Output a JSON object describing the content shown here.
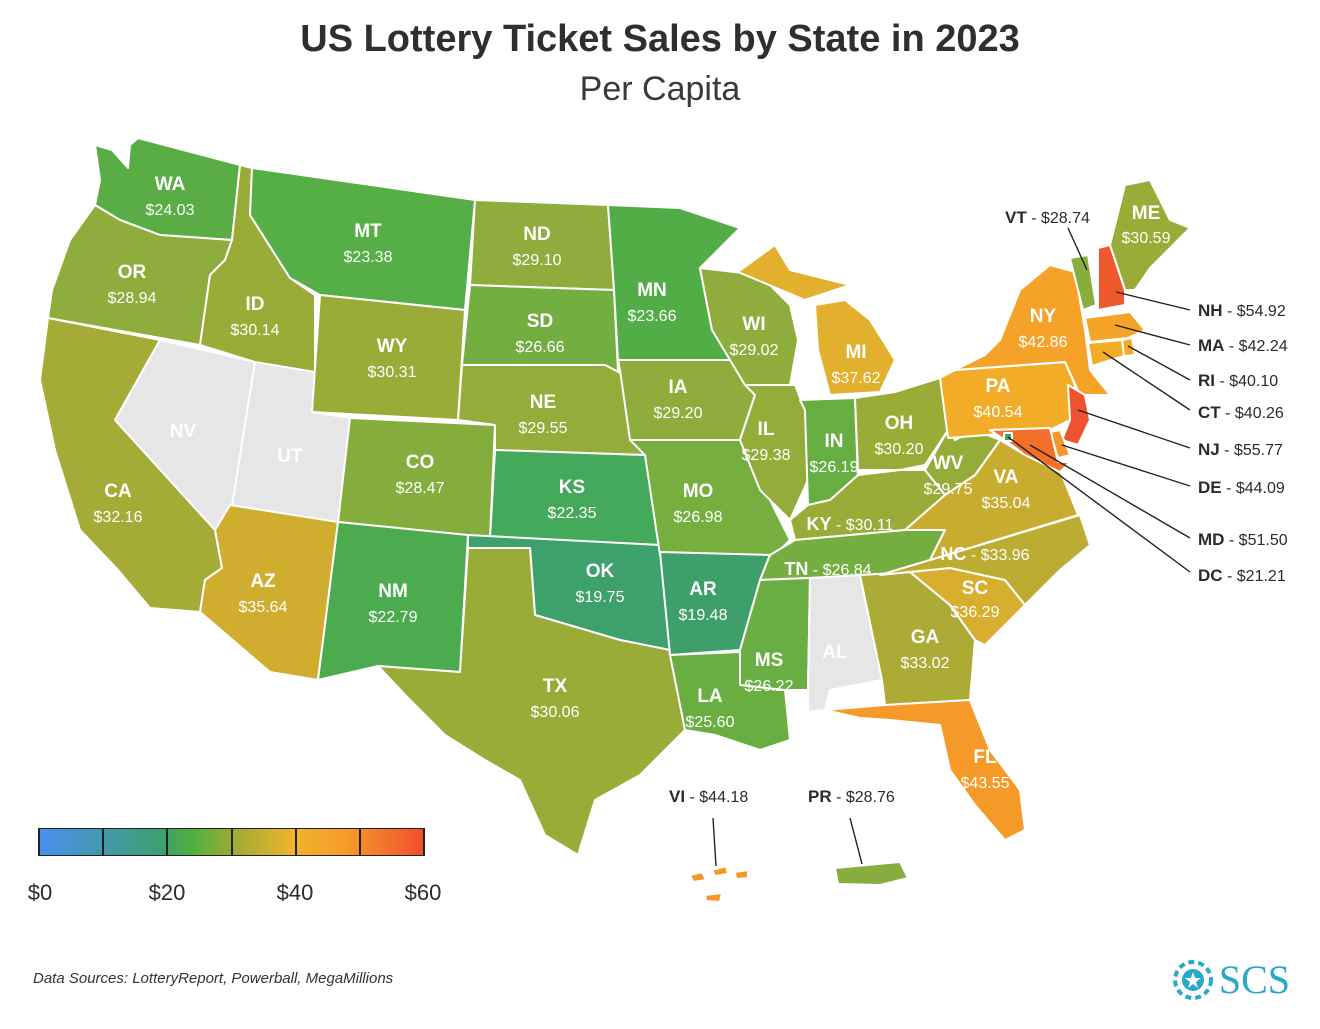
{
  "title": "US Lottery Ticket Sales by State in 2023",
  "subtitle": "Per Capita",
  "source": "Data Sources: LotteryReport, Powerball, MegaMillions",
  "logo_text": "SCS",
  "legend": {
    "ticks": [
      "$0",
      "$20",
      "$40",
      "$60"
    ],
    "min": 0,
    "max": 60,
    "colors": [
      "#4a90f0",
      "#3ea06a",
      "#52b040",
      "#9aab35",
      "#f0b42a",
      "#f59a28",
      "#f04e2e"
    ]
  },
  "no_data_color": "#e6e6e6",
  "states": {
    "WA": {
      "abbr": "WA",
      "value": "$24.03",
      "color": "#5aad45"
    },
    "OR": {
      "abbr": "OR",
      "value": "$28.94",
      "color": "#8ead3c"
    },
    "CA": {
      "abbr": "CA",
      "value": "$32.16",
      "color": "#a4ab36"
    },
    "NV": {
      "abbr": "NV",
      "value": "",
      "color": "#e6e6e6"
    },
    "UT": {
      "abbr": "UT",
      "value": "",
      "color": "#e6e6e6"
    },
    "ID": {
      "abbr": "ID",
      "value": "$30.14",
      "color": "#9aab38"
    },
    "AZ": {
      "abbr": "AZ",
      "value": "$35.64",
      "color": "#d1ad2f"
    },
    "MT": {
      "abbr": "MT",
      "value": "$23.38",
      "color": "#55ae46"
    },
    "WY": {
      "abbr": "WY",
      "value": "$30.31",
      "color": "#9aab38"
    },
    "CO": {
      "abbr": "CO",
      "value": "$28.47",
      "color": "#84ad3e"
    },
    "NM": {
      "abbr": "NM",
      "value": "$22.79",
      "color": "#4cab4e"
    },
    "ND": {
      "abbr": "ND",
      "value": "$29.10",
      "color": "#8ead3c"
    },
    "SD": {
      "abbr": "SD",
      "value": "$26.66",
      "color": "#72ae40"
    },
    "NE": {
      "abbr": "NE",
      "value": "$29.55",
      "color": "#94ac3a"
    },
    "KS": {
      "abbr": "KS",
      "value": "$22.35",
      "color": "#44a95a"
    },
    "OK": {
      "abbr": "OK",
      "value": "$19.75",
      "color": "#3ea06a"
    },
    "TX": {
      "abbr": "TX",
      "value": "$30.06",
      "color": "#9aab38"
    },
    "MN": {
      "abbr": "MN",
      "value": "$23.66",
      "color": "#52ad47"
    },
    "IA": {
      "abbr": "IA",
      "value": "$29.20",
      "color": "#8ead3c"
    },
    "MO": {
      "abbr": "MO",
      "value": "$26.98",
      "color": "#76ae40"
    },
    "AR": {
      "abbr": "AR",
      "value": "$19.48",
      "color": "#3e9f6a"
    },
    "LA": {
      "abbr": "LA",
      "value": "$25.60",
      "color": "#6aae42"
    },
    "WI": {
      "abbr": "WI",
      "value": "$29.02",
      "color": "#8ead3c"
    },
    "IL": {
      "abbr": "IL",
      "value": "$29.38",
      "color": "#94ac3a"
    },
    "MI": {
      "abbr": "MI",
      "value": "$37.62",
      "color": "#e2b02c"
    },
    "IN": {
      "abbr": "IN",
      "value": "$26.19",
      "color": "#66ae42"
    },
    "OH": {
      "abbr": "OH",
      "value": "$30.20",
      "color": "#9aab38"
    },
    "KY": {
      "abbr": "KY",
      "value": "$30.11",
      "color": "#9aab38"
    },
    "TN": {
      "abbr": "TN",
      "value": "$26.84",
      "color": "#74ae40"
    },
    "MS": {
      "abbr": "MS",
      "value": "$26.22",
      "color": "#68ae42"
    },
    "AL": {
      "abbr": "AL",
      "value": "",
      "color": "#e6e6e6"
    },
    "GA": {
      "abbr": "GA",
      "value": "$33.02",
      "color": "#acab35"
    },
    "FL": {
      "abbr": "FL",
      "value": "$43.55",
      "color": "#f59a28"
    },
    "SC": {
      "abbr": "SC",
      "value": "$36.29",
      "color": "#d8ae2e"
    },
    "NC": {
      "abbr": "NC",
      "value": "$33.96",
      "color": "#bcac32"
    },
    "VA": {
      "abbr": "VA",
      "value": "$35.04",
      "color": "#c8ac30"
    },
    "WV": {
      "abbr": "WV",
      "value": "$29.75",
      "color": "#96ac39"
    },
    "PA": {
      "abbr": "PA",
      "value": "$40.54",
      "color": "#f2ac28"
    },
    "NY": {
      "abbr": "NY",
      "value": "$42.86",
      "color": "#f4a228"
    },
    "VT": {
      "abbr": "VT",
      "value": "$28.74",
      "color": "#86ad3e"
    },
    "NH": {
      "abbr": "NH",
      "value": "$54.92",
      "color": "#ef5a2c"
    },
    "ME": {
      "abbr": "ME",
      "value": "$30.59",
      "color": "#9aab38"
    },
    "MA": {
      "abbr": "MA",
      "value": "$42.24",
      "color": "#f4a428"
    },
    "RI": {
      "abbr": "RI",
      "value": "$40.10",
      "color": "#f2ac28"
    },
    "CT": {
      "abbr": "CT",
      "value": "$40.26",
      "color": "#f2ac28"
    },
    "NJ": {
      "abbr": "NJ",
      "value": "$55.77",
      "color": "#ef5230"
    },
    "DE": {
      "abbr": "DE",
      "value": "$44.09",
      "color": "#f59628"
    },
    "MD": {
      "abbr": "MD",
      "value": "$51.50",
      "color": "#f2702a"
    },
    "DC": {
      "abbr": "DC",
      "value": "$21.21",
      "color": "#42a560"
    },
    "VI": {
      "abbr": "VI",
      "value": "$44.18",
      "color": "#f59628"
    },
    "PR": {
      "abbr": "PR",
      "value": "$28.76",
      "color": "#86ad3e"
    }
  }
}
